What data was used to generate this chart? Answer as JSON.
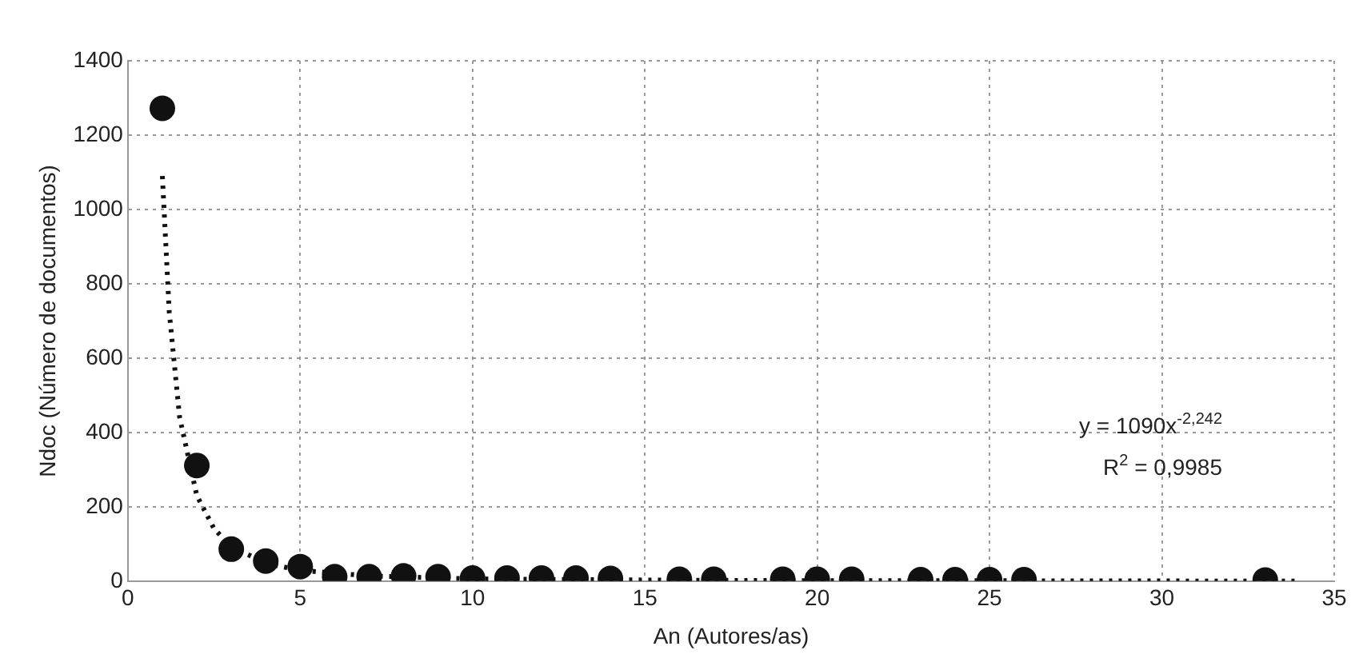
{
  "chart_data": {
    "type": "scatter",
    "xlabel": "An (Autores/as)",
    "ylabel": "Ndoc (Número de documentos)",
    "xlim": [
      0,
      35
    ],
    "xticks": [
      0,
      5,
      10,
      15,
      20,
      25,
      30,
      35
    ],
    "ylim": [
      0,
      1400
    ],
    "yticks": [
      0,
      200,
      400,
      600,
      800,
      1000,
      1200,
      1400
    ],
    "grid": true,
    "legend": false,
    "annotations": [
      "y = 1090x$^{-2,242}$",
      "R$^{2}$ = 0,9985"
    ],
    "series": [
      {
        "color": "#111111",
        "marker": "circle",
        "x": [
          1,
          2,
          3,
          4,
          5,
          6,
          7,
          8,
          9,
          10,
          11,
          12,
          13,
          14,
          16,
          17,
          19,
          20,
          21,
          23,
          24,
          25,
          26,
          33
        ],
        "values": [
          1272,
          311,
          86,
          54,
          39,
          12,
          12,
          14,
          12,
          8,
          8,
          8,
          8,
          7,
          5,
          5,
          5,
          5,
          5,
          4,
          4,
          4,
          4,
          3
        ]
      },
      {
        "type": "line",
        "color": "#111111",
        "marker": "none",
        "line_style": "dotted",
        "x": [
          1,
          1.2,
          1.5,
          2,
          2.5,
          3,
          4,
          5,
          7,
          10,
          15,
          20,
          25,
          34
        ],
        "values": [
          1090,
          724,
          441,
          230,
          141,
          93,
          48,
          29,
          14,
          6,
          3,
          1,
          1,
          0
        ]
      }
    ]
  }
}
